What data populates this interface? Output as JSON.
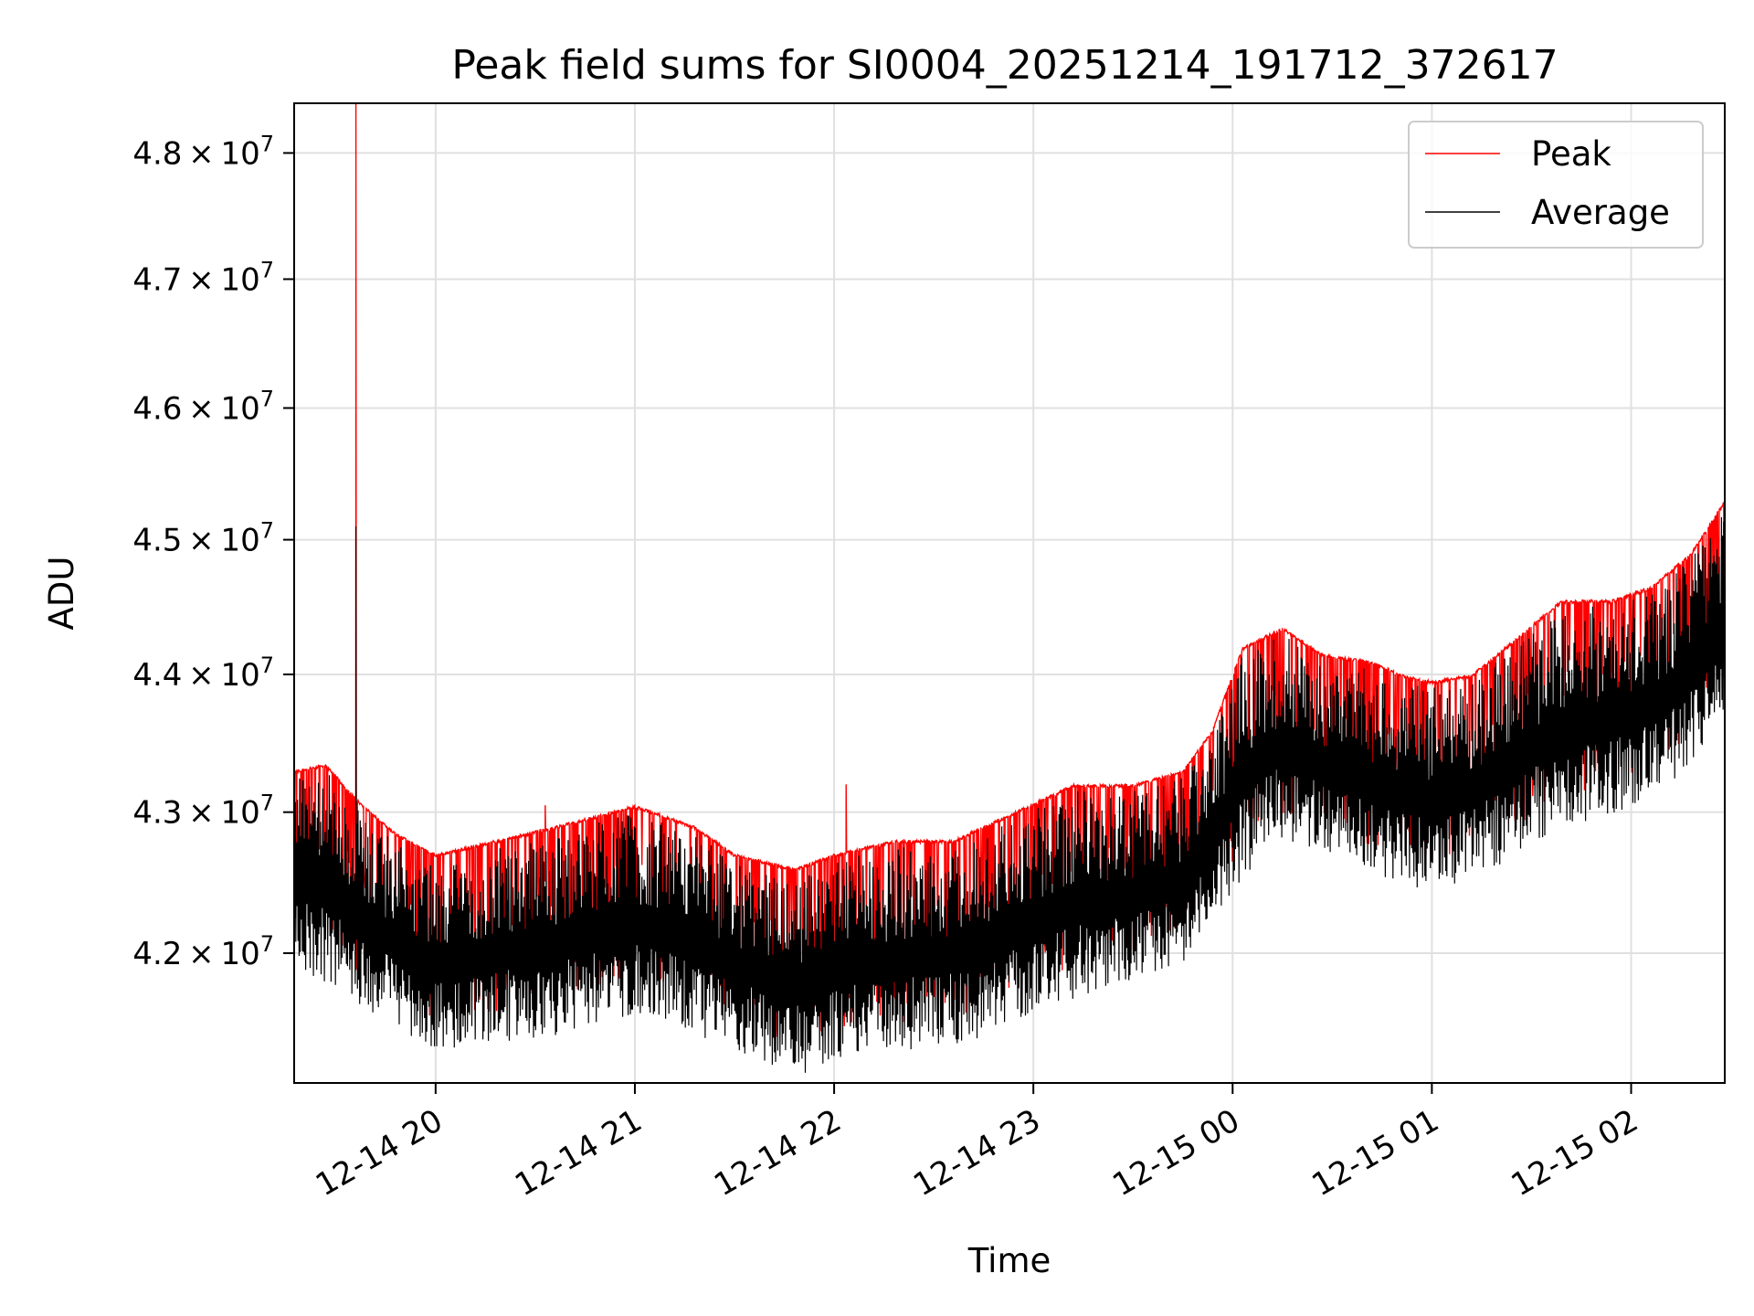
{
  "chart_data": {
    "type": "line",
    "title": "Peak field sums for SI0004_20251214_191712_372617",
    "xlabel": "Time",
    "ylabel": "ADU",
    "yscale": "log",
    "xlim_hours": [
      19.29,
      26.47
    ],
    "ylim": [
      41100000,
      48400000
    ],
    "grid": true,
    "legend_position": "top-right",
    "x_ticks": [
      {
        "hour": 20,
        "label": "12-14 20"
      },
      {
        "hour": 21,
        "label": "12-14 21"
      },
      {
        "hour": 22,
        "label": "12-14 22"
      },
      {
        "hour": 23,
        "label": "12-14 23"
      },
      {
        "hour": 24,
        "label": "12-15 00"
      },
      {
        "hour": 25,
        "label": "12-15 01"
      },
      {
        "hour": 26,
        "label": "12-15 02"
      }
    ],
    "y_ticks": [
      {
        "value": 42000000,
        "mantissa": "4.2",
        "exponent": "7"
      },
      {
        "value": 43000000,
        "mantissa": "4.3",
        "exponent": "7"
      },
      {
        "value": 44000000,
        "mantissa": "4.4",
        "exponent": "7"
      },
      {
        "value": 45000000,
        "mantissa": "4.5",
        "exponent": "7"
      },
      {
        "value": 46000000,
        "mantissa": "4.6",
        "exponent": "7"
      },
      {
        "value": 47000000,
        "mantissa": "4.7",
        "exponent": "7"
      },
      {
        "value": 48000000,
        "mantissa": "4.8",
        "exponent": "7"
      }
    ],
    "times_label_symbol": "×",
    "series": [
      {
        "name": "Peak",
        "color": "#ff0000",
        "envelope_top": [
          [
            19.29,
            43300000
          ],
          [
            19.45,
            43350000
          ],
          [
            19.6,
            43100000
          ],
          [
            19.8,
            42850000
          ],
          [
            20.0,
            42700000
          ],
          [
            20.3,
            42800000
          ],
          [
            20.6,
            42900000
          ],
          [
            21.0,
            43050000
          ],
          [
            21.3,
            42900000
          ],
          [
            21.5,
            42700000
          ],
          [
            21.8,
            42600000
          ],
          [
            22.0,
            42700000
          ],
          [
            22.3,
            42800000
          ],
          [
            22.6,
            42800000
          ],
          [
            22.9,
            43000000
          ],
          [
            23.2,
            43200000
          ],
          [
            23.5,
            43200000
          ],
          [
            23.75,
            43300000
          ],
          [
            23.9,
            43600000
          ],
          [
            24.05,
            44200000
          ],
          [
            24.25,
            44350000
          ],
          [
            24.45,
            44150000
          ],
          [
            24.7,
            44100000
          ],
          [
            24.85,
            44000000
          ],
          [
            25.0,
            43950000
          ],
          [
            25.2,
            44000000
          ],
          [
            25.45,
            44300000
          ],
          [
            25.65,
            44550000
          ],
          [
            25.9,
            44550000
          ],
          [
            26.1,
            44650000
          ],
          [
            26.3,
            44900000
          ],
          [
            26.47,
            45300000
          ]
        ],
        "spikes": [
          [
            19.6,
            48400000
          ],
          [
            20.55,
            43050000
          ],
          [
            22.06,
            43200000
          ]
        ]
      },
      {
        "name": "Average",
        "color": "#000000",
        "envelope_top": [
          [
            19.29,
            43250000
          ],
          [
            19.45,
            43300000
          ],
          [
            19.6,
            43050000
          ],
          [
            19.8,
            42800000
          ],
          [
            20.0,
            42650000
          ],
          [
            20.3,
            42750000
          ],
          [
            20.6,
            42850000
          ],
          [
            21.0,
            43000000
          ],
          [
            21.3,
            42850000
          ],
          [
            21.5,
            42650000
          ],
          [
            21.8,
            42550000
          ],
          [
            22.0,
            42650000
          ],
          [
            22.3,
            42750000
          ],
          [
            22.6,
            42750000
          ],
          [
            22.9,
            42950000
          ],
          [
            23.2,
            43150000
          ],
          [
            23.5,
            43150000
          ],
          [
            23.75,
            43250000
          ],
          [
            23.9,
            43550000
          ],
          [
            24.05,
            44150000
          ],
          [
            24.25,
            44300000
          ],
          [
            24.45,
            44100000
          ],
          [
            24.7,
            44050000
          ],
          [
            24.85,
            43950000
          ],
          [
            25.0,
            43900000
          ],
          [
            25.2,
            43950000
          ],
          [
            25.45,
            44250000
          ],
          [
            25.65,
            44500000
          ],
          [
            25.9,
            44500000
          ],
          [
            26.1,
            44600000
          ],
          [
            26.3,
            44850000
          ],
          [
            26.47,
            45250000
          ]
        ],
        "envelope_bottom": [
          [
            19.29,
            41900000
          ],
          [
            19.5,
            41700000
          ],
          [
            19.8,
            41450000
          ],
          [
            20.0,
            41300000
          ],
          [
            20.3,
            41350000
          ],
          [
            20.6,
            41400000
          ],
          [
            21.0,
            41550000
          ],
          [
            21.3,
            41400000
          ],
          [
            21.6,
            41250000
          ],
          [
            21.85,
            41100000
          ],
          [
            22.1,
            41250000
          ],
          [
            22.4,
            41300000
          ],
          [
            22.7,
            41350000
          ],
          [
            23.0,
            41550000
          ],
          [
            23.3,
            41700000
          ],
          [
            23.6,
            41800000
          ],
          [
            23.8,
            41950000
          ],
          [
            24.0,
            42400000
          ],
          [
            24.2,
            42750000
          ],
          [
            24.45,
            42700000
          ],
          [
            24.7,
            42500000
          ],
          [
            25.0,
            42400000
          ],
          [
            25.3,
            42550000
          ],
          [
            25.6,
            42800000
          ],
          [
            25.9,
            42950000
          ],
          [
            26.2,
            43150000
          ],
          [
            26.47,
            43650000
          ]
        ],
        "spikes": [
          [
            19.6,
            45100000
          ]
        ]
      }
    ]
  }
}
